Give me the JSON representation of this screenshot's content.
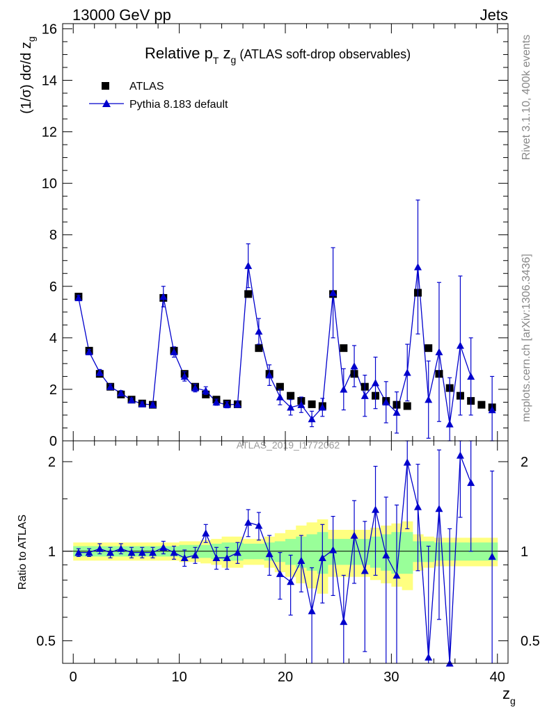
{
  "header": {
    "left": "13000 GeV pp",
    "right": "Jets"
  },
  "side_labels": {
    "top": "Rivet 3.1.10,  400k events",
    "bottom": "mcplots.cern.ch [arXiv:1306.3436]"
  },
  "colors": {
    "data": "#000000",
    "mc": "#0000cc",
    "band_inner": "#99ff99",
    "band_outer": "#ffff80",
    "watermark": "#999999"
  },
  "chart_data": [
    {
      "type": "scatter",
      "panel": "main",
      "title_main": "Relative p",
      "title_sub_T": "T",
      "title_z": " z",
      "title_sub_g": "g",
      "title_rest": " (ATLAS soft-drop observables)",
      "ylabel": "(1/σ) dσ/d z",
      "ylabel_sub": "g",
      "ylim": [
        0,
        16.2
      ],
      "xlim": [
        -1,
        41
      ],
      "yticks": [
        0,
        2,
        4,
        6,
        8,
        10,
        12,
        14,
        16
      ],
      "ytick_labels": [
        "0",
        "2",
        "4",
        "6",
        "8",
        "10",
        "12",
        "14",
        "16"
      ],
      "watermark": "ATLAS_2019_I1772062",
      "legend": [
        {
          "name": "ATLAS",
          "marker": "square"
        },
        {
          "name": "Pythia 8.183 default",
          "marker": "triangle"
        }
      ],
      "x": [
        0.5,
        1.5,
        2.5,
        3.5,
        4.5,
        5.5,
        6.5,
        7.5,
        8.5,
        9.5,
        10.5,
        11.5,
        12.5,
        13.5,
        14.5,
        15.5,
        16.5,
        17.5,
        18.5,
        19.5,
        20.5,
        21.5,
        22.5,
        23.5,
        24.5,
        25.5,
        26.5,
        27.5,
        28.5,
        29.5,
        30.5,
        31.5,
        32.5,
        33.5,
        34.5,
        35.5,
        36.5,
        37.5,
        38.5,
        39.5
      ],
      "series": [
        {
          "name": "ATLAS",
          "values": [
            5.6,
            3.5,
            2.6,
            2.1,
            1.8,
            1.6,
            1.45,
            1.4,
            5.55,
            3.5,
            2.6,
            2.1,
            1.8,
            1.6,
            1.45,
            1.42,
            5.7,
            3.6,
            2.6,
            2.1,
            1.75,
            1.55,
            1.42,
            1.35,
            5.7,
            3.6,
            2.6,
            2.1,
            1.75,
            1.55,
            1.4,
            1.35,
            5.75,
            3.6,
            2.6,
            2.05,
            1.75,
            1.55,
            1.4,
            1.3
          ],
          "errors": []
        },
        {
          "name": "Pythia 8.183 default",
          "values": [
            5.55,
            3.45,
            2.65,
            2.1,
            1.85,
            1.58,
            1.43,
            1.4,
            5.6,
            3.45,
            2.5,
            2.05,
            1.95,
            1.5,
            1.4,
            1.42,
            6.8,
            4.25,
            2.55,
            1.7,
            1.3,
            1.4,
            0.85,
            1.3,
            5.75,
            2.0,
            2.9,
            1.75,
            2.25,
            1.5,
            1.1,
            2.65,
            6.75,
            1.6,
            3.45,
            0.65,
            3.7,
            2.5,
            null,
            1.2
          ],
          "errors": [
            0.1,
            0.1,
            0.12,
            0.1,
            0.1,
            0.08,
            0.08,
            0.08,
            0.4,
            0.2,
            0.18,
            0.15,
            0.15,
            0.12,
            0.12,
            0.12,
            0.85,
            0.5,
            0.4,
            0.3,
            0.3,
            0.3,
            0.3,
            0.35,
            1.75,
            0.8,
            0.8,
            0.8,
            1.0,
            0.8,
            0.8,
            1.1,
            2.6,
            1.5,
            2.7,
            1.8,
            2.7,
            1.5,
            null,
            1.3
          ]
        }
      ]
    },
    {
      "type": "scatter",
      "panel": "ratio",
      "ylabel": "Ratio to ATLAS",
      "xlabel": "z",
      "xlabel_sub": "g",
      "scale": "log",
      "ylim": [
        0.42,
        2.35
      ],
      "yticks": [
        0.5,
        1,
        2
      ],
      "ytick_labels": [
        "0.5",
        "1",
        "2"
      ],
      "xticks": [
        0,
        10,
        20,
        30,
        40
      ],
      "xtick_labels": [
        "0",
        "10",
        "20",
        "30",
        "40"
      ],
      "x": [
        0.5,
        1.5,
        2.5,
        3.5,
        4.5,
        5.5,
        6.5,
        7.5,
        8.5,
        9.5,
        10.5,
        11.5,
        12.5,
        13.5,
        14.5,
        15.5,
        16.5,
        17.5,
        18.5,
        19.5,
        20.5,
        21.5,
        22.5,
        23.5,
        24.5,
        25.5,
        26.5,
        27.5,
        28.5,
        29.5,
        30.5,
        31.5,
        32.5,
        33.5,
        34.5,
        35.5,
        36.5,
        37.5,
        38.5,
        39.5
      ],
      "band_inner": [
        0.04,
        0.04,
        0.04,
        0.04,
        0.04,
        0.04,
        0.04,
        0.04,
        0.04,
        0.04,
        0.05,
        0.05,
        0.05,
        0.06,
        0.07,
        0.07,
        0.06,
        0.06,
        0.07,
        0.08,
        0.1,
        0.12,
        0.14,
        0.16,
        0.1,
        0.1,
        0.1,
        0.1,
        0.12,
        0.14,
        0.16,
        0.16,
        0.08,
        0.08,
        0.07,
        0.07,
        0.07,
        0.07,
        0.07,
        0.07
      ],
      "band_outer": [
        0.07,
        0.07,
        0.07,
        0.07,
        0.07,
        0.07,
        0.07,
        0.07,
        0.07,
        0.07,
        0.08,
        0.08,
        0.09,
        0.1,
        0.12,
        0.12,
        0.1,
        0.1,
        0.12,
        0.15,
        0.18,
        0.22,
        0.25,
        0.28,
        0.18,
        0.18,
        0.18,
        0.18,
        0.2,
        0.22,
        0.24,
        0.26,
        0.14,
        0.12,
        0.11,
        0.11,
        0.11,
        0.11,
        0.11,
        0.11
      ],
      "series": [
        {
          "name": "Pythia 8.183 default",
          "values": [
            0.99,
            0.99,
            1.02,
            0.99,
            1.02,
            0.99,
            0.99,
            0.99,
            1.03,
            0.99,
            0.95,
            0.97,
            1.15,
            0.95,
            0.95,
            0.99,
            1.25,
            1.22,
            0.98,
            0.84,
            0.79,
            0.93,
            0.63,
            0.95,
            1.01,
            0.58,
            1.13,
            0.86,
            1.38,
            0.97,
            0.83,
            1.99,
            1.41,
            0.44,
            1.39,
            0.39,
            2.1,
            1.7,
            null,
            0.96
          ],
          "errors": [
            0.03,
            0.03,
            0.04,
            0.04,
            0.04,
            0.04,
            0.04,
            0.04,
            0.05,
            0.05,
            0.06,
            0.06,
            0.08,
            0.08,
            0.08,
            0.08,
            0.13,
            0.13,
            0.15,
            0.15,
            0.18,
            0.2,
            0.25,
            0.28,
            0.3,
            0.25,
            0.35,
            0.4,
            0.55,
            0.55,
            0.6,
            0.8,
            0.55,
            0.6,
            0.8,
            0.8,
            0.8,
            0.7,
            null,
            0.9
          ]
        }
      ]
    }
  ]
}
